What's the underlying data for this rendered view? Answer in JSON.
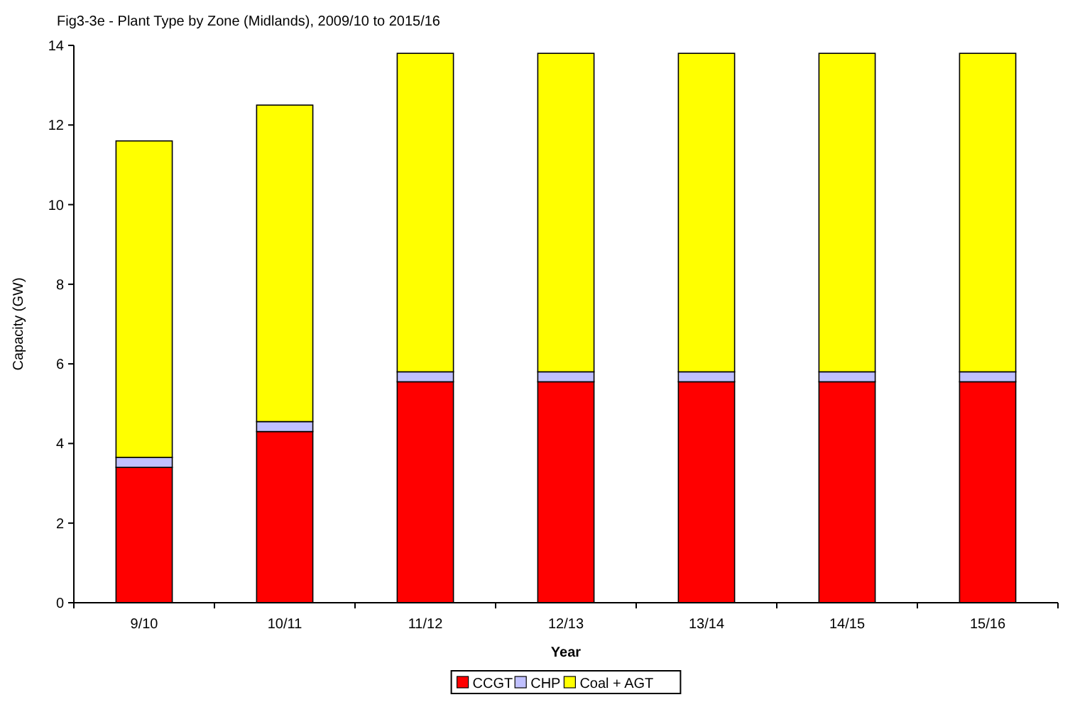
{
  "chart_data": {
    "type": "bar",
    "title": "Fig3-3e - Plant Type by Zone (Midlands), 2009/10 to 2015/16",
    "xlabel": "Year",
    "ylabel": "Capacity (GW)",
    "categories": [
      "9/10",
      "10/11",
      "11/12",
      "12/13",
      "13/14",
      "14/15",
      "15/16"
    ],
    "stacked": true,
    "series": [
      {
        "name": "CCGT",
        "color": "#ff0000",
        "values": [
          3.4,
          4.3,
          5.55,
          5.55,
          5.55,
          5.55,
          5.55
        ]
      },
      {
        "name": "CHP",
        "color": "#c0c0ff",
        "values": [
          0.25,
          0.25,
          0.25,
          0.25,
          0.25,
          0.25,
          0.25
        ]
      },
      {
        "name": "Coal + AGT",
        "color": "#ffff00",
        "values": [
          7.95,
          7.95,
          8.0,
          8.0,
          8.0,
          8.0,
          8.0
        ]
      }
    ],
    "ylim": [
      0,
      14
    ],
    "yticks": [
      0,
      2,
      4,
      6,
      8,
      10,
      12,
      14
    ],
    "grid": false,
    "legend": "bottom"
  }
}
